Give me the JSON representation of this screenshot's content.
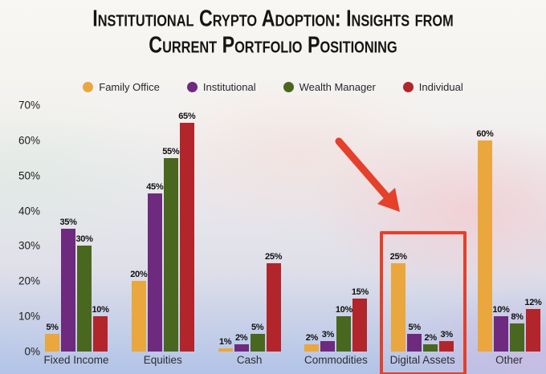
{
  "title": "Institutional Crypto Adoption: Insights from Current Portfolio Positioning",
  "colors": {
    "family_office": "#e9a73e",
    "institutional": "#6e2a7e",
    "wealth_manager": "#49671f",
    "individual": "#b2252a",
    "annotation": "#e5402a"
  },
  "chart_data": {
    "type": "bar",
    "title": "Institutional Crypto Adoption: Insights from Current Portfolio Positioning",
    "categories": [
      "Fixed Income",
      "Equities",
      "Cash",
      "Commodities",
      "Digital Assets",
      "Other"
    ],
    "series": [
      {
        "name": "Family Office",
        "color": "#e9a73e",
        "values": [
          5,
          20,
          1,
          2,
          25,
          60
        ]
      },
      {
        "name": "Institutional",
        "color": "#6e2a7e",
        "values": [
          35,
          45,
          2,
          3,
          5,
          10
        ]
      },
      {
        "name": "Wealth Manager",
        "color": "#49671f",
        "values": [
          30,
          55,
          5,
          10,
          2,
          8
        ]
      },
      {
        "name": "Individual",
        "color": "#b2252a",
        "values": [
          10,
          65,
          25,
          15,
          3,
          12
        ]
      }
    ],
    "xlabel": "",
    "ylabel": "",
    "ylim": [
      0,
      70
    ],
    "yticks": [
      "0%",
      "10%",
      "20%",
      "30%",
      "40%",
      "50%",
      "60%",
      "70%"
    ],
    "grid": false,
    "legend_position": "top",
    "value_label_suffix": "%",
    "annotations": {
      "highlighted_category": "Digital Assets",
      "highlight_style": "red box outline",
      "arrow": "red arrow pointing down-right at the Digital Assets group",
      "annotation_color": "#e5402a"
    }
  }
}
